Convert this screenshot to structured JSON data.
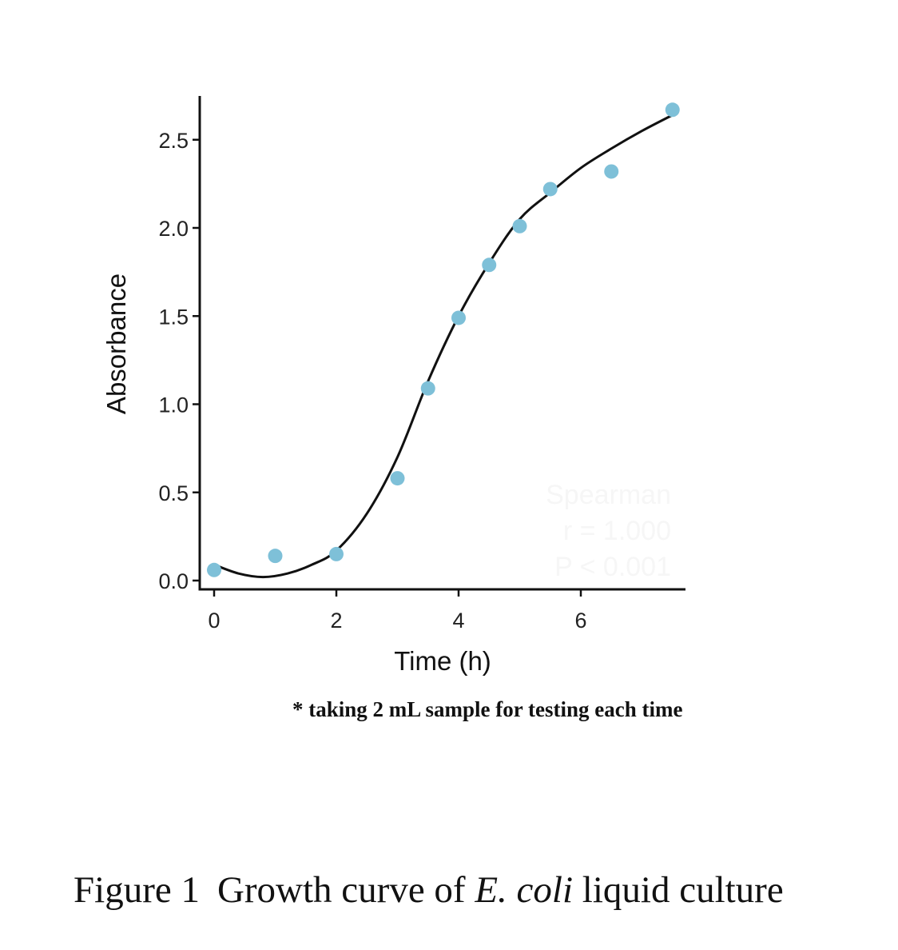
{
  "chart_data": {
    "type": "scatter",
    "xlabel": "Time (h)",
    "ylabel": "Absorbance",
    "xlim": [
      -0.25,
      7.75
    ],
    "ylim": [
      -0.05,
      2.75
    ],
    "xticks": [
      0,
      2,
      4,
      6
    ],
    "yticks": [
      "0.0",
      "0.5",
      "1.0",
      "1.5",
      "2.0",
      "2.5"
    ],
    "grid": false,
    "point_color": "#7ec0d8",
    "line_color": "#111111",
    "points": {
      "x": [
        0,
        1,
        2,
        3,
        3.5,
        4,
        4.5,
        5,
        5.5,
        6.5,
        7.5
      ],
      "y": [
        0.06,
        0.14,
        0.15,
        0.58,
        1.09,
        1.49,
        1.79,
        2.01,
        2.22,
        2.32,
        2.67
      ]
    },
    "fit_curve": {
      "x": [
        0,
        0.4,
        0.8,
        1.2,
        1.6,
        2,
        2.5,
        3,
        3.5,
        4,
        4.5,
        5,
        5.5,
        6,
        6.5,
        7,
        7.5
      ],
      "y": [
        0.09,
        0.04,
        0.02,
        0.04,
        0.09,
        0.17,
        0.38,
        0.7,
        1.13,
        1.5,
        1.8,
        2.05,
        2.2,
        2.34,
        2.45,
        2.55,
        2.64
      ]
    },
    "annotation": [
      "Spearman",
      "r = 1.000",
      "P < 0.001"
    ]
  },
  "note": "* taking 2 mL sample for testing each time",
  "caption": {
    "label": "Figure 1",
    "text_before": "Growth curve of ",
    "italic": "E. coli",
    "text_after": " liquid culture"
  }
}
